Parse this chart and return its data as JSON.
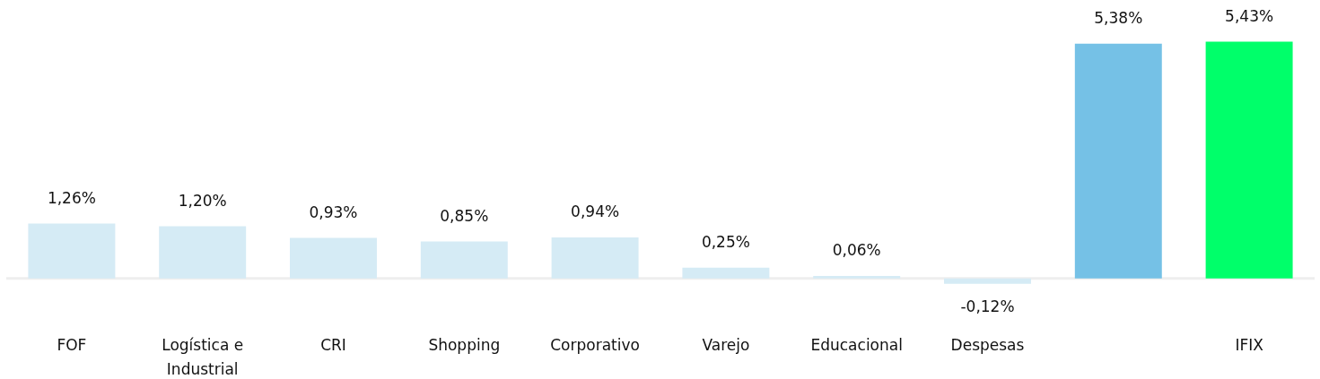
{
  "chart_data": {
    "type": "bar",
    "categories": [
      "FOF",
      "Logística e Industrial",
      "CRI",
      "Shopping",
      "Corporativo",
      "Varejo",
      "Educacional",
      "Despesas",
      null,
      "IFIX"
    ],
    "values": [
      1.26,
      1.2,
      0.93,
      0.85,
      0.94,
      0.25,
      0.06,
      -0.12,
      5.38,
      5.43
    ],
    "colors": [
      "#d5ebf5",
      "#d5ebf5",
      "#d5ebf5",
      "#d5ebf5",
      "#d5ebf5",
      "#d5ebf5",
      "#d5ebf5",
      "#d5ebf5",
      "#75c1e6",
      "#00ff6a"
    ],
    "value_labels": [
      "1,26%",
      "1,20%",
      "0,93%",
      "0,85%",
      "0,94%",
      "0,25%",
      "0,06%",
      "-0,12%",
      "5,38%",
      "5,43%"
    ]
  }
}
